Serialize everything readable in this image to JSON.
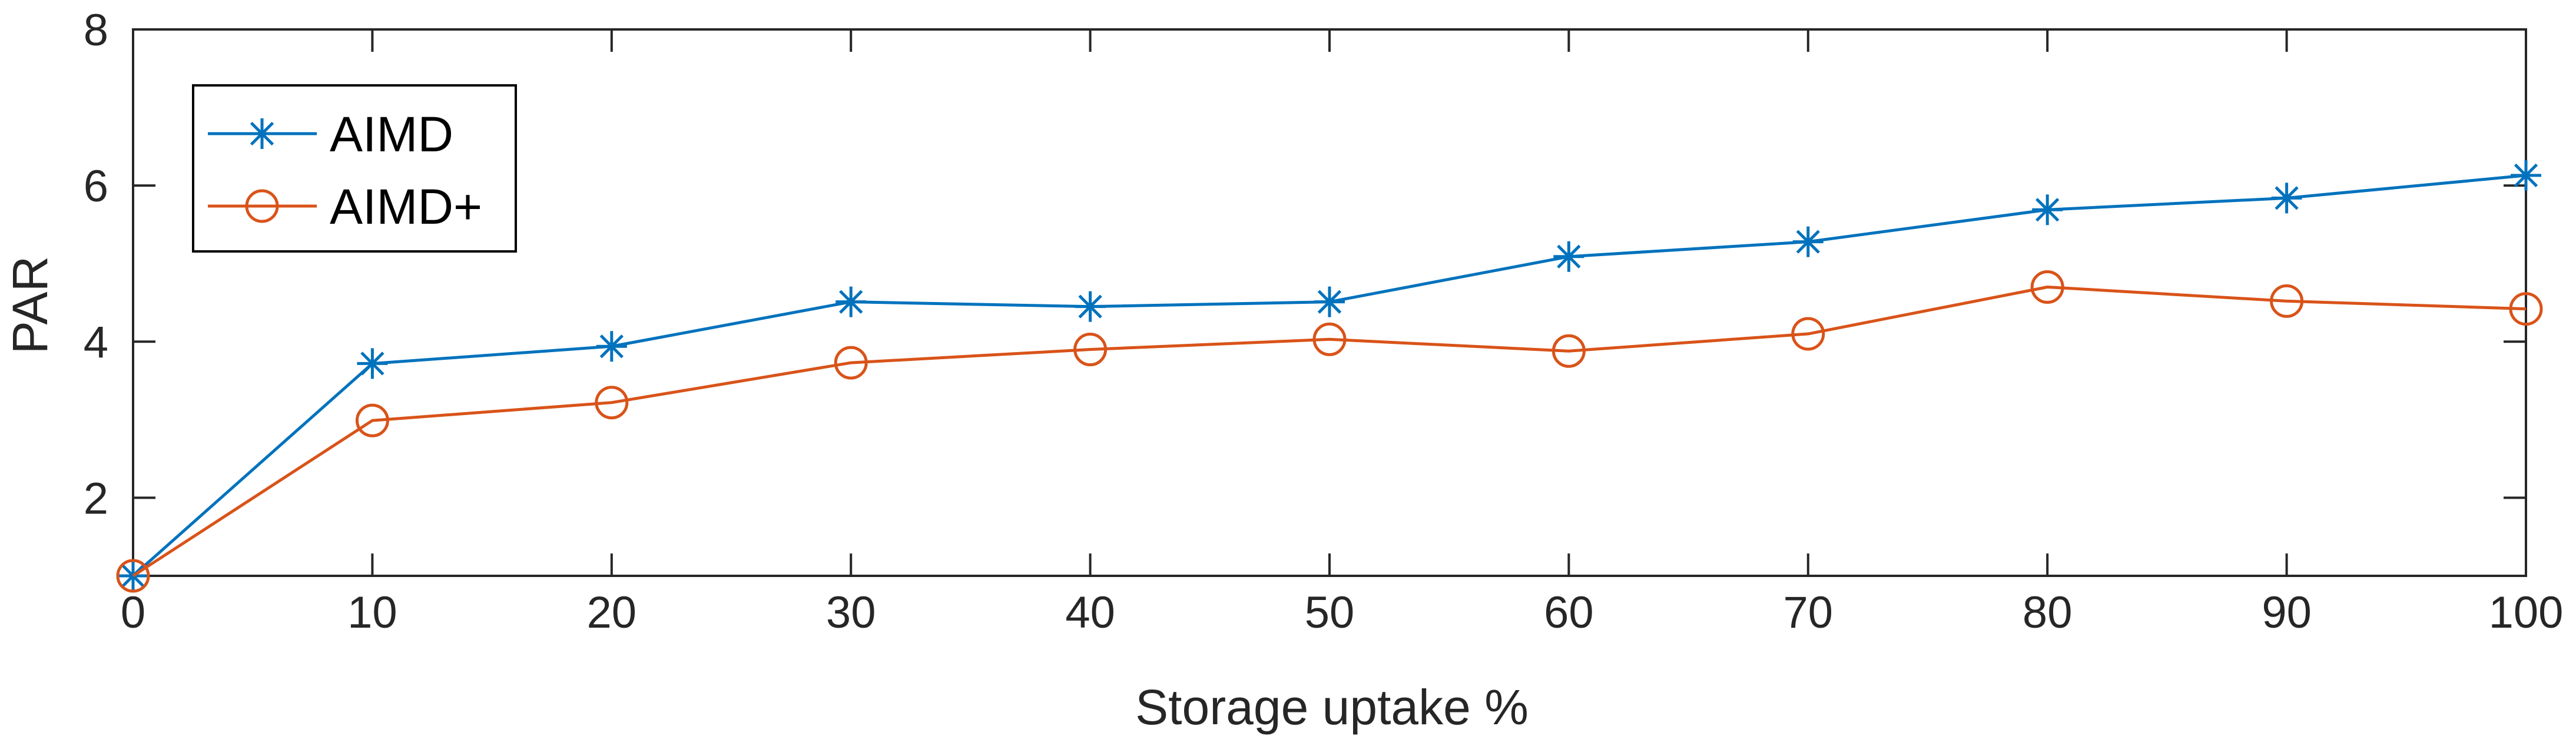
{
  "chart_data": {
    "type": "line",
    "title": "",
    "xlabel": "Storage uptake %",
    "ylabel": "PAR",
    "xlim": [
      0,
      100
    ],
    "ylim": [
      1,
      8
    ],
    "xticks": [
      0,
      10,
      20,
      30,
      40,
      50,
      60,
      70,
      80,
      90,
      100
    ],
    "yticks": [
      2,
      4,
      6,
      8
    ],
    "x": [
      0,
      10,
      20,
      30,
      40,
      50,
      60,
      70,
      80,
      90,
      100
    ],
    "grid": false,
    "legend_position": "top-left",
    "series": [
      {
        "name": "AIMD",
        "marker": "asterisk",
        "color": "#0072BD",
        "values": [
          1.0,
          3.72,
          3.94,
          4.51,
          4.45,
          4.51,
          5.09,
          5.28,
          5.69,
          5.84,
          6.13
        ]
      },
      {
        "name": "AIMD+",
        "marker": "circle",
        "color": "#D95319",
        "values": [
          1.0,
          2.99,
          3.22,
          3.73,
          3.9,
          4.03,
          3.88,
          4.1,
          4.7,
          4.52,
          4.42
        ]
      }
    ]
  }
}
